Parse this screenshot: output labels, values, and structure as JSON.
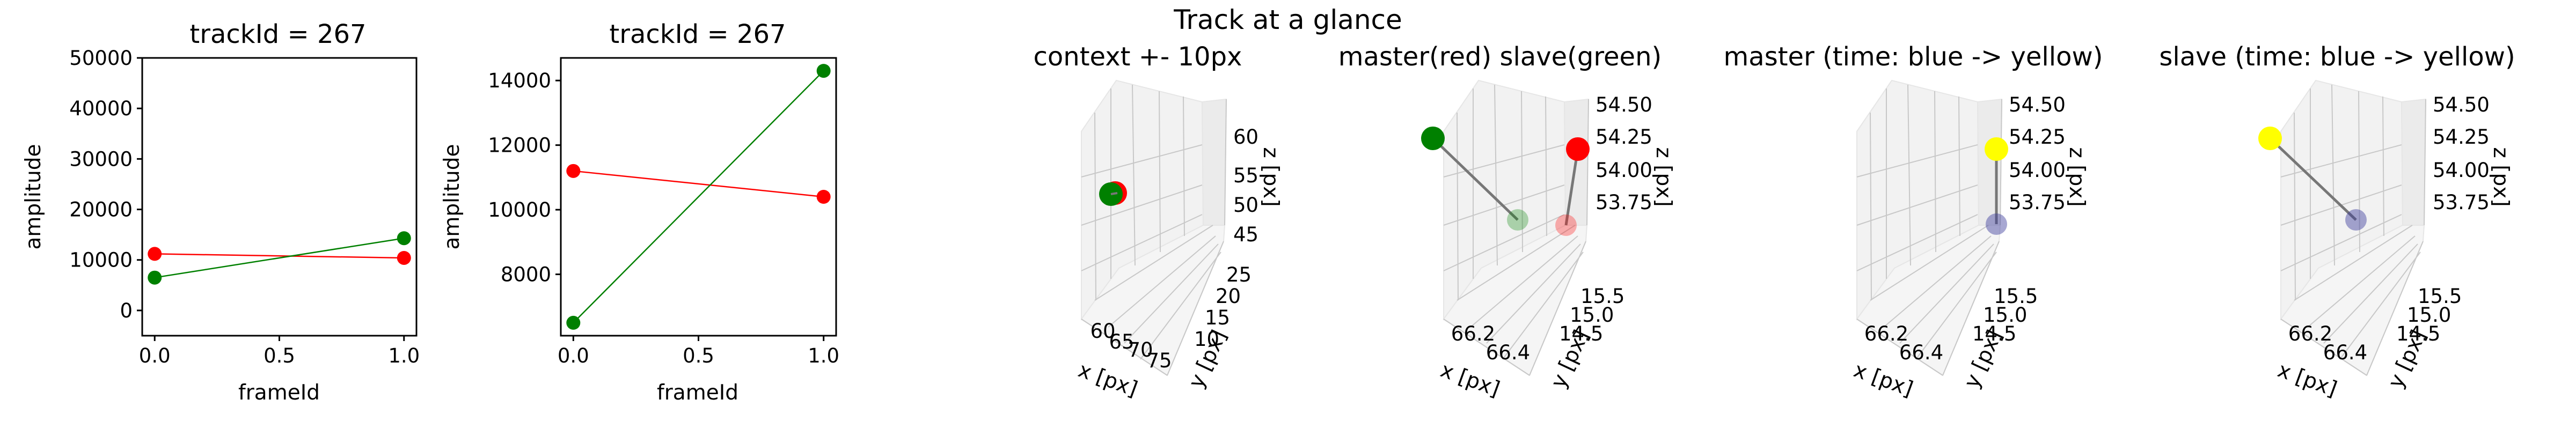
{
  "figure": {
    "suptitle": "Track at a glance"
  },
  "chart_data": [
    {
      "type": "line",
      "title": "trackId = 267",
      "xlabel": "frameId",
      "ylabel": "amplitude",
      "xlim": [
        -0.05,
        1.05
      ],
      "ylim": [
        -5000,
        50000
      ],
      "xticks": [
        0.0,
        0.5,
        1.0
      ],
      "xtick_labels": [
        "0.0",
        "0.5",
        "1.0"
      ],
      "yticks": [
        0,
        10000,
        20000,
        30000,
        40000,
        50000
      ],
      "ytick_labels": [
        "0",
        "10000",
        "20000",
        "30000",
        "40000",
        "50000"
      ],
      "series": [
        {
          "color": "#ff0000",
          "x": [
            0,
            1
          ],
          "y": [
            11200,
            10400
          ]
        },
        {
          "color": "#008000",
          "x": [
            0,
            1
          ],
          "y": [
            6500,
            14300
          ]
        }
      ]
    },
    {
      "type": "line",
      "title": "trackId = 267",
      "xlabel": "frameId",
      "ylabel": "amplitude",
      "xlim": [
        -0.05,
        1.05
      ],
      "ylim": [
        6100,
        14700
      ],
      "xticks": [
        0.0,
        0.5,
        1.0
      ],
      "xtick_labels": [
        "0.0",
        "0.5",
        "1.0"
      ],
      "yticks": [
        8000,
        10000,
        12000,
        14000
      ],
      "ytick_labels": [
        "8000",
        "10000",
        "12000",
        "14000"
      ],
      "series": [
        {
          "color": "#ff0000",
          "x": [
            0,
            1
          ],
          "y": [
            11200,
            10400
          ]
        },
        {
          "color": "#008000",
          "x": [
            0,
            1
          ],
          "y": [
            6500,
            14300
          ]
        }
      ]
    },
    {
      "type": "scatter",
      "projection": "3d",
      "title": "context +- 10px",
      "xlabel": "x [px]",
      "ylabel": "y [px]",
      "zlabel": "z [px]",
      "xtick_labels": [
        "60",
        "65",
        "70",
        "75"
      ],
      "ytick_labels": [
        "10",
        "15",
        "20",
        "25"
      ],
      "ztick_labels": [
        "45",
        "50",
        "55",
        "60"
      ],
      "points": [
        {
          "color": "#ff0000",
          "x": 66.3,
          "y": 15.2,
          "z": 54.1
        },
        {
          "color": "#008000",
          "x": 66.2,
          "y": 15.3,
          "z": 54.2
        }
      ]
    },
    {
      "type": "scatter",
      "projection": "3d",
      "title": "master(red) slave(green)",
      "xlabel": "x [px]",
      "ylabel": "y [px]",
      "zlabel": "z [px]",
      "xtick_labels": [
        "66.2",
        "66.4"
      ],
      "ytick_labels": [
        "14.5",
        "15.0",
        "15.5"
      ],
      "ztick_labels": [
        "53.75",
        "54.00",
        "54.25",
        "54.50"
      ],
      "series": [
        {
          "name": "master",
          "color": "#ff0000"
        },
        {
          "name": "slave",
          "color": "#008000"
        }
      ]
    },
    {
      "type": "scatter",
      "projection": "3d",
      "title": "master (time: blue -> yellow)",
      "xlabel": "x [px]",
      "ylabel": "y [px]",
      "zlabel": "z [px]",
      "xtick_labels": [
        "66.2",
        "66.4"
      ],
      "ytick_labels": [
        "14.5",
        "15.0",
        "15.5"
      ],
      "ztick_labels": [
        "53.75",
        "54.00",
        "54.25",
        "54.50"
      ],
      "colors": {
        "start": "#3b3b9c",
        "end": "#ffff00"
      }
    },
    {
      "type": "scatter",
      "projection": "3d",
      "title": "slave (time: blue -> yellow)",
      "xlabel": "x [px]",
      "ylabel": "y [px]",
      "zlabel": "z [px]",
      "xtick_labels": [
        "66.2",
        "66.4"
      ],
      "ytick_labels": [
        "14.5",
        "15.0",
        "15.5"
      ],
      "ztick_labels": [
        "53.75",
        "54.00",
        "54.25",
        "54.50"
      ],
      "colors": {
        "start": "#3b3b9c",
        "end": "#ffff00"
      }
    }
  ]
}
